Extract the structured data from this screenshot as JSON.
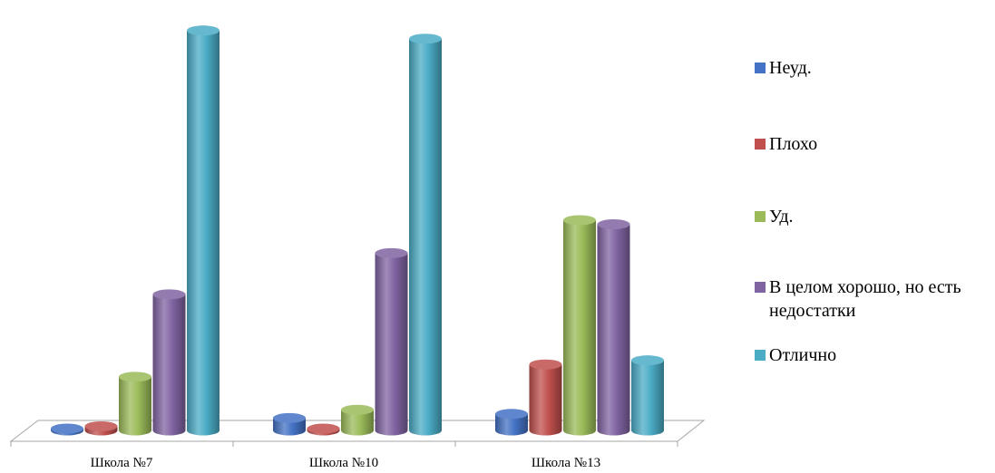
{
  "chart_data": {
    "type": "bar",
    "style": "3d-cylinder",
    "title": "",
    "xlabel": "",
    "ylabel": "",
    "ylim": [
      0,
      100
    ],
    "grid": false,
    "legend_position": "right",
    "categories": [
      "Школа №7",
      "Школа №10",
      "Школа №13"
    ],
    "series": [
      {
        "name": "Неуд.",
        "color": "#4472C4",
        "values": [
          0,
          3,
          4
        ]
      },
      {
        "name": "Плохо",
        "color": "#C0504D",
        "values": [
          1,
          0,
          16
        ]
      },
      {
        "name": "Уд.",
        "color": "#9BBB59",
        "values": [
          13,
          5,
          51
        ]
      },
      {
        "name": "В целом хорошо, но есть недостатки",
        "color": "#8064A2",
        "values": [
          33,
          43,
          50
        ]
      },
      {
        "name": "Отлично",
        "color": "#4BACC6",
        "values": [
          97,
          95,
          17
        ]
      }
    ]
  }
}
